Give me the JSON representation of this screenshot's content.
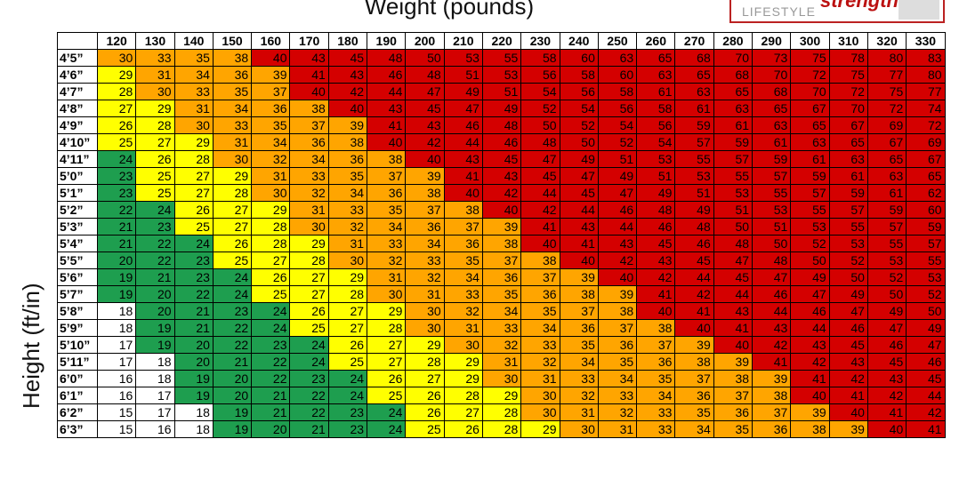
{
  "header": {
    "x_axis_label": "Weight (pounds)",
    "y_axis_label": "Height (ft/in)"
  },
  "logo": {
    "brand": "strength",
    "sub": "LIFESTYLE"
  },
  "colors": {
    "white": "#ffffff",
    "green": "#1e9e4f",
    "yellow": "#ffff00",
    "orange": "#ffa500",
    "red": "#d40000"
  },
  "chart_data": {
    "type": "table",
    "xlabel": "Weight (pounds)",
    "ylabel": "Height (ft/in)",
    "weights": [
      "120",
      "130",
      "140",
      "150",
      "160",
      "170",
      "180",
      "190",
      "200",
      "210",
      "220",
      "230",
      "240",
      "250",
      "260",
      "270",
      "280",
      "290",
      "300",
      "310",
      "320",
      "330"
    ],
    "heights": [
      "4’5”",
      "4’6”",
      "4’7”",
      "4’8”",
      "4’9”",
      "4’10”",
      "4’11”",
      "5’0”",
      "5’1”",
      "5’2”",
      "5’3”",
      "5’4”",
      "5’5”",
      "5’6”",
      "5’7”",
      "5’8”",
      "5’9”",
      "5’10”",
      "5’11”",
      "6’0”",
      "6’1”",
      "6’2”",
      "6’3”"
    ],
    "bmi": [
      [
        30,
        33,
        35,
        38,
        40,
        43,
        45,
        48,
        50,
        53,
        55,
        58,
        60,
        63,
        65,
        68,
        70,
        73,
        75,
        78,
        80,
        83
      ],
      [
        29,
        31,
        34,
        36,
        39,
        41,
        43,
        46,
        48,
        51,
        53,
        56,
        58,
        60,
        63,
        65,
        68,
        70,
        72,
        75,
        77,
        80
      ],
      [
        28,
        30,
        33,
        35,
        37,
        40,
        42,
        44,
        47,
        49,
        51,
        54,
        56,
        58,
        61,
        63,
        65,
        68,
        70,
        72,
        75,
        77
      ],
      [
        27,
        29,
        31,
        34,
        36,
        38,
        40,
        43,
        45,
        47,
        49,
        52,
        54,
        56,
        58,
        61,
        63,
        65,
        67,
        70,
        72,
        74
      ],
      [
        26,
        28,
        30,
        33,
        35,
        37,
        39,
        41,
        43,
        46,
        48,
        50,
        52,
        54,
        56,
        59,
        61,
        63,
        65,
        67,
        69,
        72
      ],
      [
        25,
        27,
        29,
        31,
        34,
        36,
        38,
        40,
        42,
        44,
        46,
        48,
        50,
        52,
        54,
        57,
        59,
        61,
        63,
        65,
        67,
        69
      ],
      [
        24,
        26,
        28,
        30,
        32,
        34,
        36,
        38,
        40,
        43,
        45,
        47,
        49,
        51,
        53,
        55,
        57,
        59,
        61,
        63,
        65,
        67
      ],
      [
        23,
        25,
        27,
        29,
        31,
        33,
        35,
        37,
        39,
        41,
        43,
        45,
        47,
        49,
        51,
        53,
        55,
        57,
        59,
        61,
        63,
        65
      ],
      [
        23,
        25,
        27,
        28,
        30,
        32,
        34,
        36,
        38,
        40,
        42,
        44,
        45,
        47,
        49,
        51,
        53,
        55,
        57,
        59,
        61,
        62
      ],
      [
        22,
        24,
        26,
        27,
        29,
        31,
        33,
        35,
        37,
        38,
        40,
        42,
        44,
        46,
        48,
        49,
        51,
        53,
        55,
        57,
        59,
        60
      ],
      [
        21,
        23,
        25,
        27,
        28,
        30,
        32,
        34,
        36,
        37,
        39,
        41,
        43,
        44,
        46,
        48,
        50,
        51,
        53,
        55,
        57,
        59
      ],
      [
        21,
        22,
        24,
        26,
        28,
        29,
        31,
        33,
        34,
        36,
        38,
        40,
        41,
        43,
        45,
        46,
        48,
        50,
        52,
        53,
        55,
        57
      ],
      [
        20,
        22,
        23,
        25,
        27,
        28,
        30,
        32,
        33,
        35,
        37,
        38,
        40,
        42,
        43,
        45,
        47,
        48,
        50,
        52,
        53,
        55
      ],
      [
        19,
        21,
        23,
        24,
        26,
        27,
        29,
        31,
        32,
        34,
        36,
        37,
        39,
        40,
        42,
        44,
        45,
        47,
        49,
        50,
        52,
        53
      ],
      [
        19,
        20,
        22,
        24,
        25,
        27,
        28,
        30,
        31,
        33,
        35,
        36,
        38,
        39,
        41,
        42,
        44,
        46,
        47,
        49,
        50,
        52
      ],
      [
        18,
        20,
        21,
        23,
        24,
        26,
        27,
        29,
        30,
        32,
        34,
        35,
        37,
        38,
        40,
        41,
        43,
        44,
        46,
        47,
        49,
        50
      ],
      [
        18,
        19,
        21,
        22,
        24,
        25,
        27,
        28,
        30,
        31,
        33,
        34,
        36,
        37,
        38,
        40,
        41,
        43,
        44,
        46,
        47,
        49
      ],
      [
        17,
        19,
        20,
        22,
        23,
        24,
        26,
        27,
        29,
        30,
        32,
        33,
        35,
        36,
        37,
        39,
        40,
        42,
        43,
        45,
        46,
        47
      ],
      [
        17,
        18,
        20,
        21,
        22,
        24,
        25,
        27,
        28,
        29,
        31,
        32,
        34,
        35,
        36,
        38,
        39,
        41,
        42,
        43,
        45,
        46
      ],
      [
        16,
        18,
        19,
        20,
        22,
        23,
        24,
        26,
        27,
        29,
        30,
        31,
        33,
        34,
        35,
        37,
        38,
        39,
        41,
        42,
        43,
        45
      ],
      [
        16,
        17,
        19,
        20,
        21,
        22,
        24,
        25,
        26,
        28,
        29,
        30,
        32,
        33,
        34,
        36,
        37,
        38,
        40,
        41,
        42,
        44
      ],
      [
        15,
        17,
        18,
        19,
        21,
        22,
        23,
        24,
        26,
        27,
        28,
        30,
        31,
        32,
        33,
        35,
        36,
        37,
        39,
        40,
        41,
        42
      ],
      [
        15,
        16,
        18,
        19,
        20,
        21,
        23,
        24,
        25,
        26,
        28,
        29,
        30,
        31,
        33,
        34,
        35,
        36,
        38,
        39,
        40,
        41
      ]
    ]
  }
}
